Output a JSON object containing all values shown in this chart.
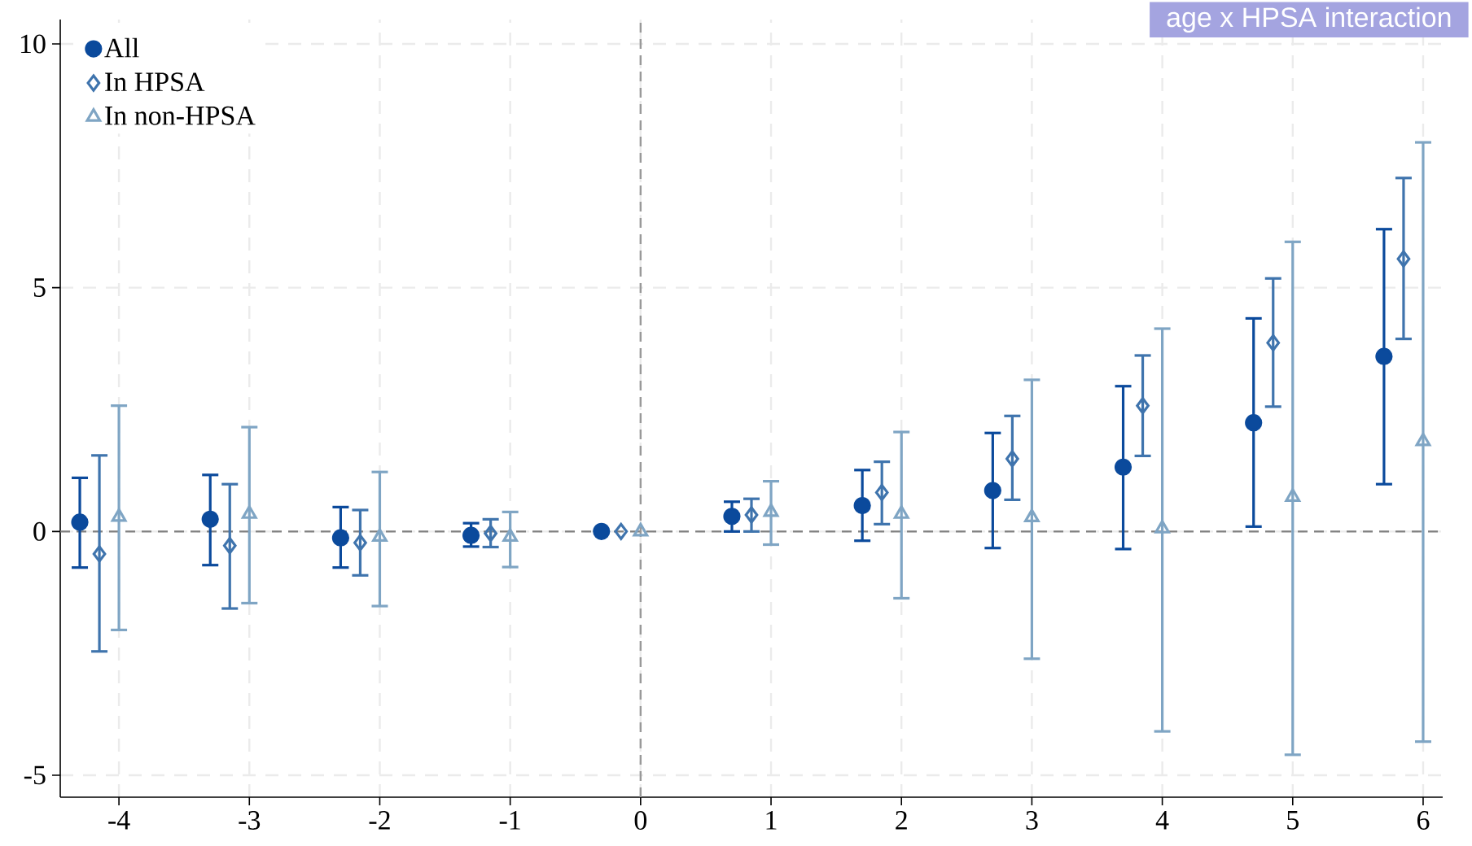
{
  "chart_data": {
    "type": "scatter",
    "xlim": [
      -4.45,
      6.15
    ],
    "ylim": [
      -5.45,
      10.5
    ],
    "xticks": [
      -4,
      -3,
      -2,
      -1,
      0,
      1,
      2,
      3,
      4,
      5,
      6
    ],
    "yticks": [
      -5,
      0,
      5,
      10
    ],
    "grid": true,
    "legend": "top left",
    "annotations": [
      "age x HPSA interaction"
    ],
    "ref_lines": [
      {
        "axis": "y",
        "value": 0,
        "color": "#808080",
        "line_style": "dashed"
      },
      {
        "axis": "x",
        "value": 0,
        "color": "#999999",
        "line_style": "dashed"
      }
    ],
    "series": [
      {
        "name": "All",
        "color": "#0b4a9c",
        "marker": "circle",
        "x": [
          -4.3,
          -3.3,
          -2.3,
          -1.3,
          -0.3,
          0.7,
          1.7,
          2.7,
          3.7,
          4.7,
          5.7
        ],
        "values": [
          0.19,
          0.25,
          -0.13,
          -0.08,
          0,
          0.31,
          0.53,
          0.84,
          1.32,
          2.23,
          3.59
        ],
        "errors": [
          [
            -0.74,
            1.1
          ],
          [
            -0.69,
            1.16
          ],
          [
            -0.74,
            0.5
          ],
          [
            -0.31,
            0.17
          ],
          null,
          [
            0.0,
            0.61
          ],
          [
            -0.19,
            1.26
          ],
          [
            -0.34,
            2.02
          ],
          [
            -0.36,
            2.98
          ],
          [
            0.1,
            4.37
          ],
          [
            0.97,
            6.2
          ]
        ]
      },
      {
        "name": "In HPSA",
        "color": "#3f74ad",
        "marker": "diamond",
        "x": [
          -4.15,
          -3.15,
          -2.15,
          -1.15,
          -0.15,
          0.85,
          1.85,
          2.85,
          3.85,
          4.85,
          5.85
        ],
        "values": [
          -0.46,
          -0.29,
          -0.23,
          -0.04,
          0,
          0.34,
          0.8,
          1.49,
          2.58,
          3.87,
          5.59
        ],
        "errors": [
          [
            -2.46,
            1.56
          ],
          [
            -1.58,
            0.97
          ],
          [
            -0.9,
            0.44
          ],
          [
            -0.32,
            0.25
          ],
          null,
          [
            0.0,
            0.67
          ],
          [
            0.15,
            1.43
          ],
          [
            0.65,
            2.37
          ],
          [
            1.55,
            3.61
          ],
          [
            2.56,
            5.19
          ],
          [
            3.95,
            7.25
          ]
        ]
      },
      {
        "name": "In non-HPSA",
        "color": "#7fa5c4",
        "marker": "triangle",
        "x": [
          -4,
          -3,
          -2,
          -1,
          0,
          1,
          2,
          3,
          4,
          5,
          6
        ],
        "values": [
          0.3,
          0.36,
          -0.11,
          -0.11,
          0,
          0.4,
          0.36,
          0.29,
          0.06,
          0.71,
          1.85
        ],
        "errors": [
          [
            -2.02,
            2.58
          ],
          [
            -1.47,
            2.14
          ],
          [
            -1.53,
            1.22
          ],
          [
            -0.73,
            0.4
          ],
          null,
          [
            -0.27,
            1.03
          ],
          [
            -1.37,
            2.04
          ],
          [
            -2.61,
            3.11
          ],
          [
            -4.1,
            4.16
          ],
          [
            -4.58,
            5.94
          ],
          [
            -4.31,
            7.98
          ]
        ]
      }
    ]
  }
}
